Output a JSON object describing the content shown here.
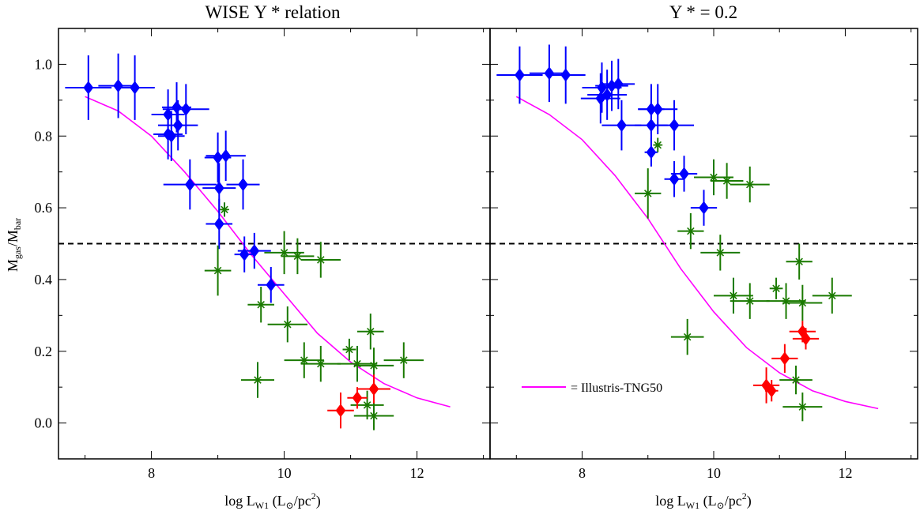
{
  "chart_data": [
    {
      "type": "scatter",
      "title": "WISE Υ * relation",
      "xlabel": "log L",
      "xlabel_sub": "W1",
      "xlabel_unit": " (L",
      "xlabel_sun": "⊙",
      "xlabel_unit2": "/pc",
      "xlabel_sup": "2",
      "xlabel_close": ")",
      "ylabel": "M",
      "ylabel_sub1": "gas",
      "ylabel_mid": "/M",
      "ylabel_sub2": "bar",
      "xlim": [
        6.6,
        13.1
      ],
      "ylim": [
        -0.1,
        1.1
      ],
      "xticks": [
        "8",
        "10",
        "12"
      ],
      "yticks": [
        "0.0",
        "0.2",
        "0.4",
        "0.6",
        "0.8",
        "1.0"
      ],
      "hline": 0.5,
      "series": [
        {
          "marker": "diamond",
          "color": "#0000ff",
          "points": [
            {
              "x": 7.05,
              "y": 0.935,
              "xerr": 0.35,
              "yerr": 0.09
            },
            {
              "x": 7.5,
              "y": 0.94,
              "xerr": 0.3,
              "yerr": 0.09
            },
            {
              "x": 7.75,
              "y": 0.935,
              "xerr": 0.3,
              "yerr": 0.09
            },
            {
              "x": 8.25,
              "y": 0.86,
              "xerr": 0.25,
              "yerr": 0.07
            },
            {
              "x": 8.38,
              "y": 0.88,
              "xerr": 0.22,
              "yerr": 0.07
            },
            {
              "x": 8.52,
              "y": 0.875,
              "xerr": 0.35,
              "yerr": 0.07
            },
            {
              "x": 8.4,
              "y": 0.83,
              "xerr": 0.3,
              "yerr": 0.07
            },
            {
              "x": 8.25,
              "y": 0.805,
              "xerr": 0.22,
              "yerr": 0.07
            },
            {
              "x": 8.3,
              "y": 0.8,
              "xerr": 0.2,
              "yerr": 0.07
            },
            {
              "x": 8.58,
              "y": 0.665,
              "xerr": 0.4,
              "yerr": 0.07
            },
            {
              "x": 9.0,
              "y": 0.74,
              "xerr": 0.2,
              "yerr": 0.07
            },
            {
              "x": 9.12,
              "y": 0.745,
              "xerr": 0.3,
              "yerr": 0.07
            },
            {
              "x": 9.02,
              "y": 0.655,
              "xerr": 0.25,
              "yerr": 0.07
            },
            {
              "x": 9.38,
              "y": 0.665,
              "xerr": 0.25,
              "yerr": 0.07
            },
            {
              "x": 9.02,
              "y": 0.555,
              "xerr": 0.2,
              "yerr": 0.07
            },
            {
              "x": 9.4,
              "y": 0.47,
              "xerr": 0.15,
              "yerr": 0.05
            },
            {
              "x": 9.55,
              "y": 0.48,
              "xerr": 0.25,
              "yerr": 0.05
            },
            {
              "x": 9.8,
              "y": 0.385,
              "xerr": 0.2,
              "yerr": 0.05
            }
          ]
        },
        {
          "marker": "asterisk",
          "color": "#1a7a00",
          "points": [
            {
              "x": 9.1,
              "y": 0.595,
              "xerr": 0.05,
              "yerr": 0.02
            },
            {
              "x": 9.0,
              "y": 0.425,
              "xerr": 0.2,
              "yerr": 0.07
            },
            {
              "x": 10.0,
              "y": 0.475,
              "xerr": 0.3,
              "yerr": 0.06
            },
            {
              "x": 10.2,
              "y": 0.465,
              "xerr": 0.25,
              "yerr": 0.05
            },
            {
              "x": 10.55,
              "y": 0.455,
              "xerr": 0.3,
              "yerr": 0.05
            },
            {
              "x": 9.65,
              "y": 0.33,
              "xerr": 0.2,
              "yerr": 0.05
            },
            {
              "x": 10.05,
              "y": 0.275,
              "xerr": 0.3,
              "yerr": 0.05
            },
            {
              "x": 10.3,
              "y": 0.175,
              "xerr": 0.3,
              "yerr": 0.05
            },
            {
              "x": 10.55,
              "y": 0.165,
              "xerr": 0.3,
              "yerr": 0.05
            },
            {
              "x": 9.6,
              "y": 0.12,
              "xerr": 0.25,
              "yerr": 0.05
            },
            {
              "x": 10.98,
              "y": 0.205,
              "xerr": 0.1,
              "yerr": 0.03
            },
            {
              "x": 11.1,
              "y": 0.165,
              "xerr": 0.3,
              "yerr": 0.05
            },
            {
              "x": 11.3,
              "y": 0.255,
              "xerr": 0.2,
              "yerr": 0.05
            },
            {
              "x": 11.35,
              "y": 0.16,
              "xerr": 0.3,
              "yerr": 0.05
            },
            {
              "x": 11.8,
              "y": 0.175,
              "xerr": 0.3,
              "yerr": 0.05
            },
            {
              "x": 11.25,
              "y": 0.05,
              "xerr": 0.25,
              "yerr": 0.04
            },
            {
              "x": 11.35,
              "y": 0.02,
              "xerr": 0.3,
              "yerr": 0.04
            }
          ]
        },
        {
          "marker": "diamond",
          "color": "#ff0000",
          "points": [
            {
              "x": 10.85,
              "y": 0.035,
              "xerr": 0.2,
              "yerr": 0.05
            },
            {
              "x": 11.1,
              "y": 0.07,
              "xerr": 0.15,
              "yerr": 0.03
            },
            {
              "x": 11.35,
              "y": 0.095,
              "xerr": 0.25,
              "yerr": 0.04
            }
          ]
        }
      ],
      "curve": {
        "color": "#ff00ff",
        "x": [
          7.0,
          7.5,
          8.0,
          8.5,
          9.0,
          9.5,
          10.0,
          10.5,
          11.0,
          11.5,
          12.0,
          12.5
        ],
        "y": [
          0.91,
          0.87,
          0.8,
          0.7,
          0.59,
          0.47,
          0.36,
          0.25,
          0.17,
          0.11,
          0.07,
          0.045
        ]
      }
    },
    {
      "type": "scatter",
      "title": "Υ * = 0.2",
      "xlabel": "log L",
      "xlabel_sub": "W1",
      "xlabel_unit": " (L",
      "xlabel_sun": "⊙",
      "xlabel_unit2": "/pc",
      "xlabel_sup": "2",
      "xlabel_close": ")",
      "xlim": [
        6.6,
        13.1
      ],
      "ylim": [
        -0.1,
        1.1
      ],
      "xticks": [
        "8",
        "10",
        "12"
      ],
      "hline": 0.5,
      "legend": {
        "label": "= Illustris-TNG50",
        "position": "lower-left"
      },
      "series": [
        {
          "marker": "diamond",
          "color": "#0000ff",
          "points": [
            {
              "x": 7.05,
              "y": 0.97,
              "xerr": 0.35,
              "yerr": 0.08
            },
            {
              "x": 7.5,
              "y": 0.975,
              "xerr": 0.3,
              "yerr": 0.08
            },
            {
              "x": 7.75,
              "y": 0.97,
              "xerr": 0.3,
              "yerr": 0.08
            },
            {
              "x": 8.3,
              "y": 0.935,
              "xerr": 0.3,
              "yerr": 0.07
            },
            {
              "x": 8.45,
              "y": 0.94,
              "xerr": 0.25,
              "yerr": 0.07
            },
            {
              "x": 8.55,
              "y": 0.945,
              "xerr": 0.25,
              "yerr": 0.07
            },
            {
              "x": 8.28,
              "y": 0.905,
              "xerr": 0.3,
              "yerr": 0.07
            },
            {
              "x": 8.38,
              "y": 0.915,
              "xerr": 0.3,
              "yerr": 0.07
            },
            {
              "x": 8.6,
              "y": 0.83,
              "xerr": 0.3,
              "yerr": 0.07
            },
            {
              "x": 9.05,
              "y": 0.875,
              "xerr": 0.2,
              "yerr": 0.07
            },
            {
              "x": 9.15,
              "y": 0.875,
              "xerr": 0.3,
              "yerr": 0.07
            },
            {
              "x": 9.05,
              "y": 0.83,
              "xerr": 0.25,
              "yerr": 0.07
            },
            {
              "x": 9.4,
              "y": 0.83,
              "xerr": 0.3,
              "yerr": 0.07
            },
            {
              "x": 9.05,
              "y": 0.755,
              "xerr": 0.1,
              "yerr": 0.04
            },
            {
              "x": 9.4,
              "y": 0.68,
              "xerr": 0.15,
              "yerr": 0.05
            },
            {
              "x": 9.55,
              "y": 0.695,
              "xerr": 0.2,
              "yerr": 0.05
            },
            {
              "x": 9.85,
              "y": 0.6,
              "xerr": 0.2,
              "yerr": 0.05
            }
          ]
        },
        {
          "marker": "asterisk",
          "color": "#1a7a00",
          "points": [
            {
              "x": 9.15,
              "y": 0.775,
              "xerr": 0.05,
              "yerr": 0.02
            },
            {
              "x": 9.0,
              "y": 0.64,
              "xerr": 0.2,
              "yerr": 0.07
            },
            {
              "x": 10.0,
              "y": 0.685,
              "xerr": 0.3,
              "yerr": 0.05
            },
            {
              "x": 10.2,
              "y": 0.675,
              "xerr": 0.25,
              "yerr": 0.05
            },
            {
              "x": 10.55,
              "y": 0.665,
              "xerr": 0.3,
              "yerr": 0.05
            },
            {
              "x": 9.65,
              "y": 0.535,
              "xerr": 0.2,
              "yerr": 0.05
            },
            {
              "x": 10.1,
              "y": 0.475,
              "xerr": 0.3,
              "yerr": 0.05
            },
            {
              "x": 10.3,
              "y": 0.355,
              "xerr": 0.3,
              "yerr": 0.05
            },
            {
              "x": 10.55,
              "y": 0.34,
              "xerr": 0.3,
              "yerr": 0.05
            },
            {
              "x": 9.6,
              "y": 0.24,
              "xerr": 0.25,
              "yerr": 0.05
            },
            {
              "x": 10.95,
              "y": 0.375,
              "xerr": 0.1,
              "yerr": 0.03
            },
            {
              "x": 11.1,
              "y": 0.34,
              "xerr": 0.3,
              "yerr": 0.05
            },
            {
              "x": 11.3,
              "y": 0.45,
              "xerr": 0.2,
              "yerr": 0.05
            },
            {
              "x": 11.35,
              "y": 0.335,
              "xerr": 0.3,
              "yerr": 0.05
            },
            {
              "x": 11.8,
              "y": 0.355,
              "xerr": 0.3,
              "yerr": 0.05
            },
            {
              "x": 11.25,
              "y": 0.12,
              "xerr": 0.25,
              "yerr": 0.04
            },
            {
              "x": 11.35,
              "y": 0.045,
              "xerr": 0.3,
              "yerr": 0.04
            }
          ]
        },
        {
          "marker": "diamond",
          "color": "#ff0000",
          "points": [
            {
              "x": 10.8,
              "y": 0.105,
              "xerr": 0.2,
              "yerr": 0.05
            },
            {
              "x": 10.88,
              "y": 0.09,
              "xerr": 0.1,
              "yerr": 0.03
            },
            {
              "x": 11.08,
              "y": 0.18,
              "xerr": 0.2,
              "yerr": 0.04
            },
            {
              "x": 11.35,
              "y": 0.255,
              "xerr": 0.2,
              "yerr": 0.03
            },
            {
              "x": 11.4,
              "y": 0.235,
              "xerr": 0.2,
              "yerr": 0.03
            }
          ]
        }
      ],
      "curve": {
        "color": "#ff00ff",
        "x": [
          7.0,
          7.5,
          8.0,
          8.5,
          9.0,
          9.5,
          10.0,
          10.5,
          11.0,
          11.5,
          12.0,
          12.5
        ],
        "y": [
          0.91,
          0.86,
          0.79,
          0.69,
          0.57,
          0.43,
          0.31,
          0.21,
          0.14,
          0.09,
          0.06,
          0.04
        ]
      }
    }
  ]
}
